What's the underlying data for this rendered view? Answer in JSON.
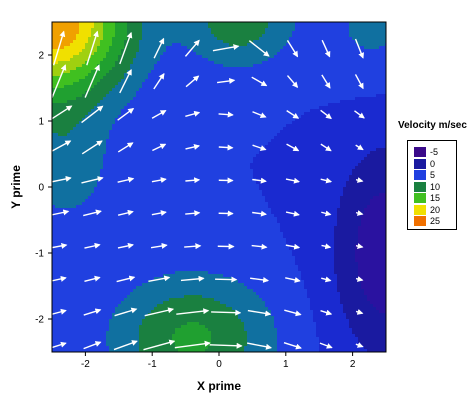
{
  "chart_data": {
    "type": "contour-vector",
    "xlabel": "X prime",
    "ylabel": "Y prime",
    "xlim": [
      -2.5,
      2.5
    ],
    "ylim": [
      -2.5,
      2.5
    ],
    "x_ticks": [
      "-2",
      "-1",
      "0",
      "1",
      "2"
    ],
    "y_ticks": [
      "-2",
      "-1",
      "0",
      "1",
      "2"
    ],
    "legend": {
      "title": "Velocity m/sec",
      "placement": "right",
      "levels": [
        {
          "label": "-5",
          "color": "#3a0a8a"
        },
        {
          "label": "0",
          "color": "#1a1aa0"
        },
        {
          "label": "5",
          "color": "#2040e0"
        },
        {
          "label": "10",
          "color": "#1a8040"
        },
        {
          "label": "15",
          "color": "#40c020"
        },
        {
          "label": "20",
          "color": "#f0e000"
        },
        {
          "label": "25",
          "color": "#f07000"
        }
      ]
    }
  }
}
